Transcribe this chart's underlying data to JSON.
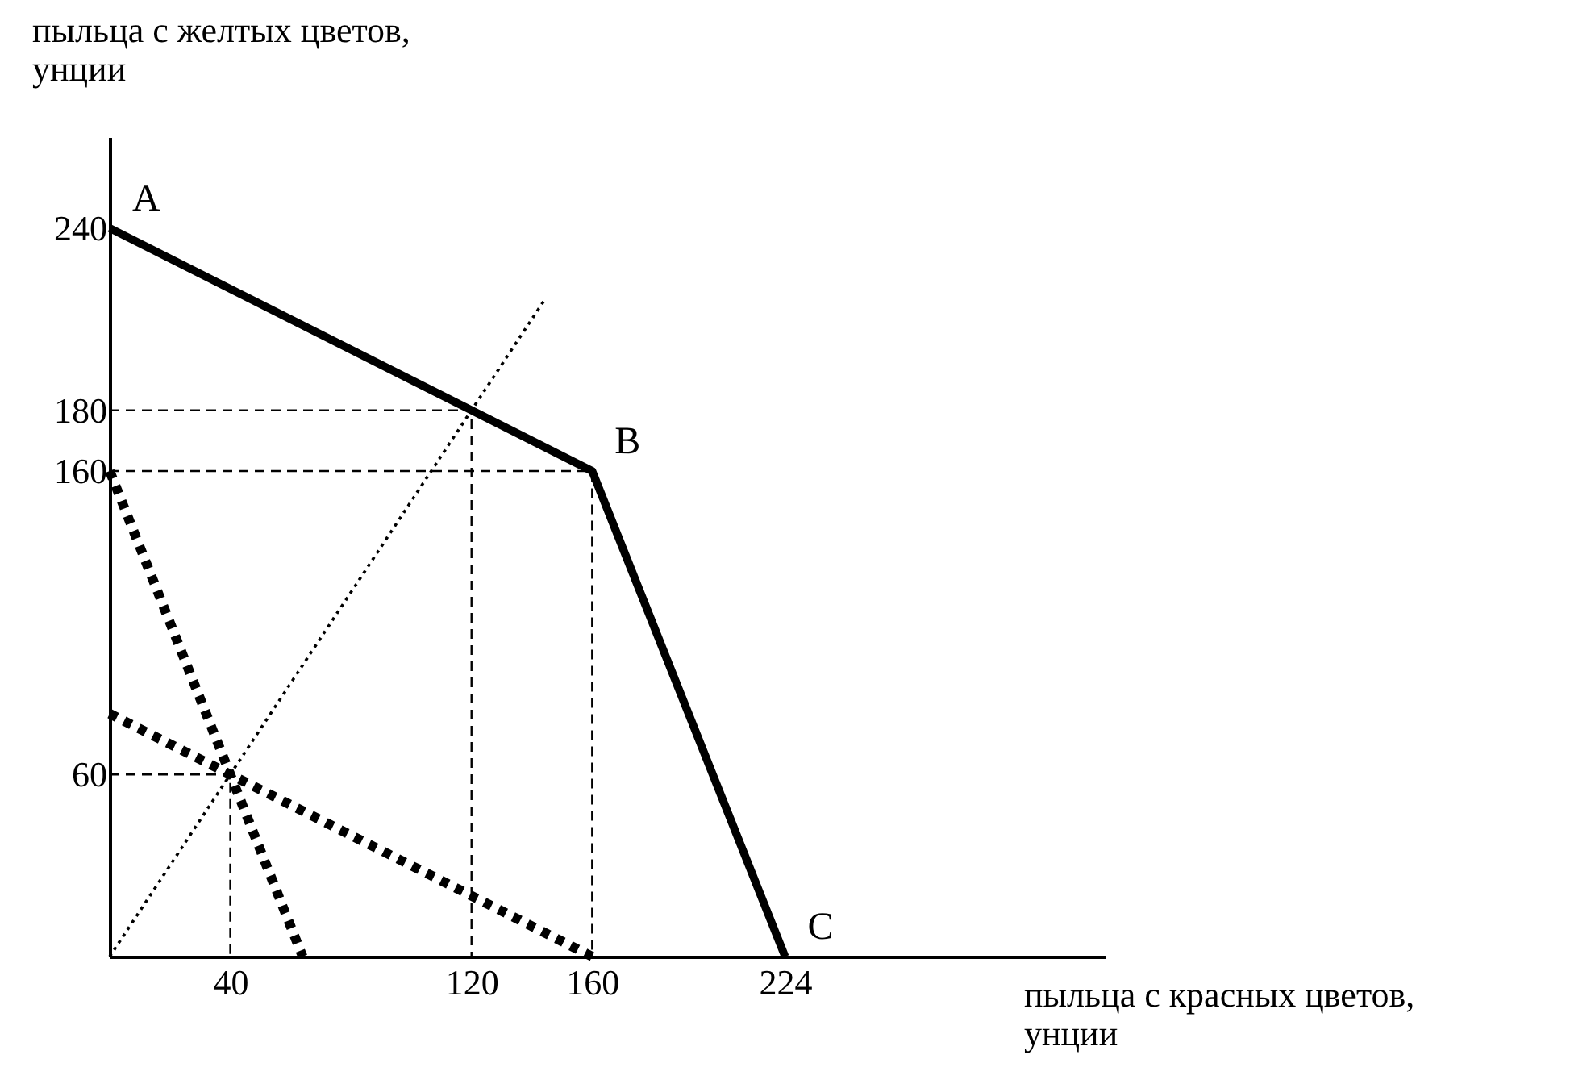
{
  "chart_data": {
    "type": "line",
    "xlabel": "пыльца с красных цветов, унции",
    "ylabel": "пыльца с желтых цветов, унции",
    "xlim": [
      0,
      330
    ],
    "ylim": [
      0,
      270
    ],
    "xticks": [
      40,
      120,
      160,
      224
    ],
    "yticks": [
      60,
      160,
      180,
      240
    ],
    "grid": false,
    "marker": "none",
    "series": [
      {
        "color": "#000000",
        "line_style": "solid",
        "x": [
          0,
          160,
          224
        ],
        "values": [
          240,
          160,
          0
        ]
      },
      {
        "color": "#000000",
        "line_style": "dotted",
        "x": [
          0,
          144
        ],
        "values": [
          0,
          216
        ]
      },
      {
        "color": "#000000",
        "line_style": "dotted",
        "x": [
          0,
          64
        ],
        "values": [
          160,
          0
        ]
      },
      {
        "color": "#000000",
        "line_style": "dotted",
        "x": [
          0,
          160
        ],
        "values": [
          80,
          0
        ]
      },
      {
        "color": "#000000",
        "line_style": "dashed",
        "x": [
          0,
          120,
          120
        ],
        "values": [
          180,
          180,
          0
        ]
      },
      {
        "color": "#000000",
        "line_style": "dashed",
        "x": [
          0,
          160,
          160
        ],
        "values": [
          160,
          160,
          0
        ]
      },
      {
        "color": "#000000",
        "line_style": "dashed",
        "x": [
          0,
          40,
          40
        ],
        "values": [
          60,
          60,
          0
        ]
      }
    ],
    "annotations": [
      {
        "text": "A",
        "x": 0,
        "y": 240
      },
      {
        "text": "B",
        "x": 160,
        "y": 160
      },
      {
        "text": "C",
        "x": 224,
        "y": 0
      }
    ]
  }
}
